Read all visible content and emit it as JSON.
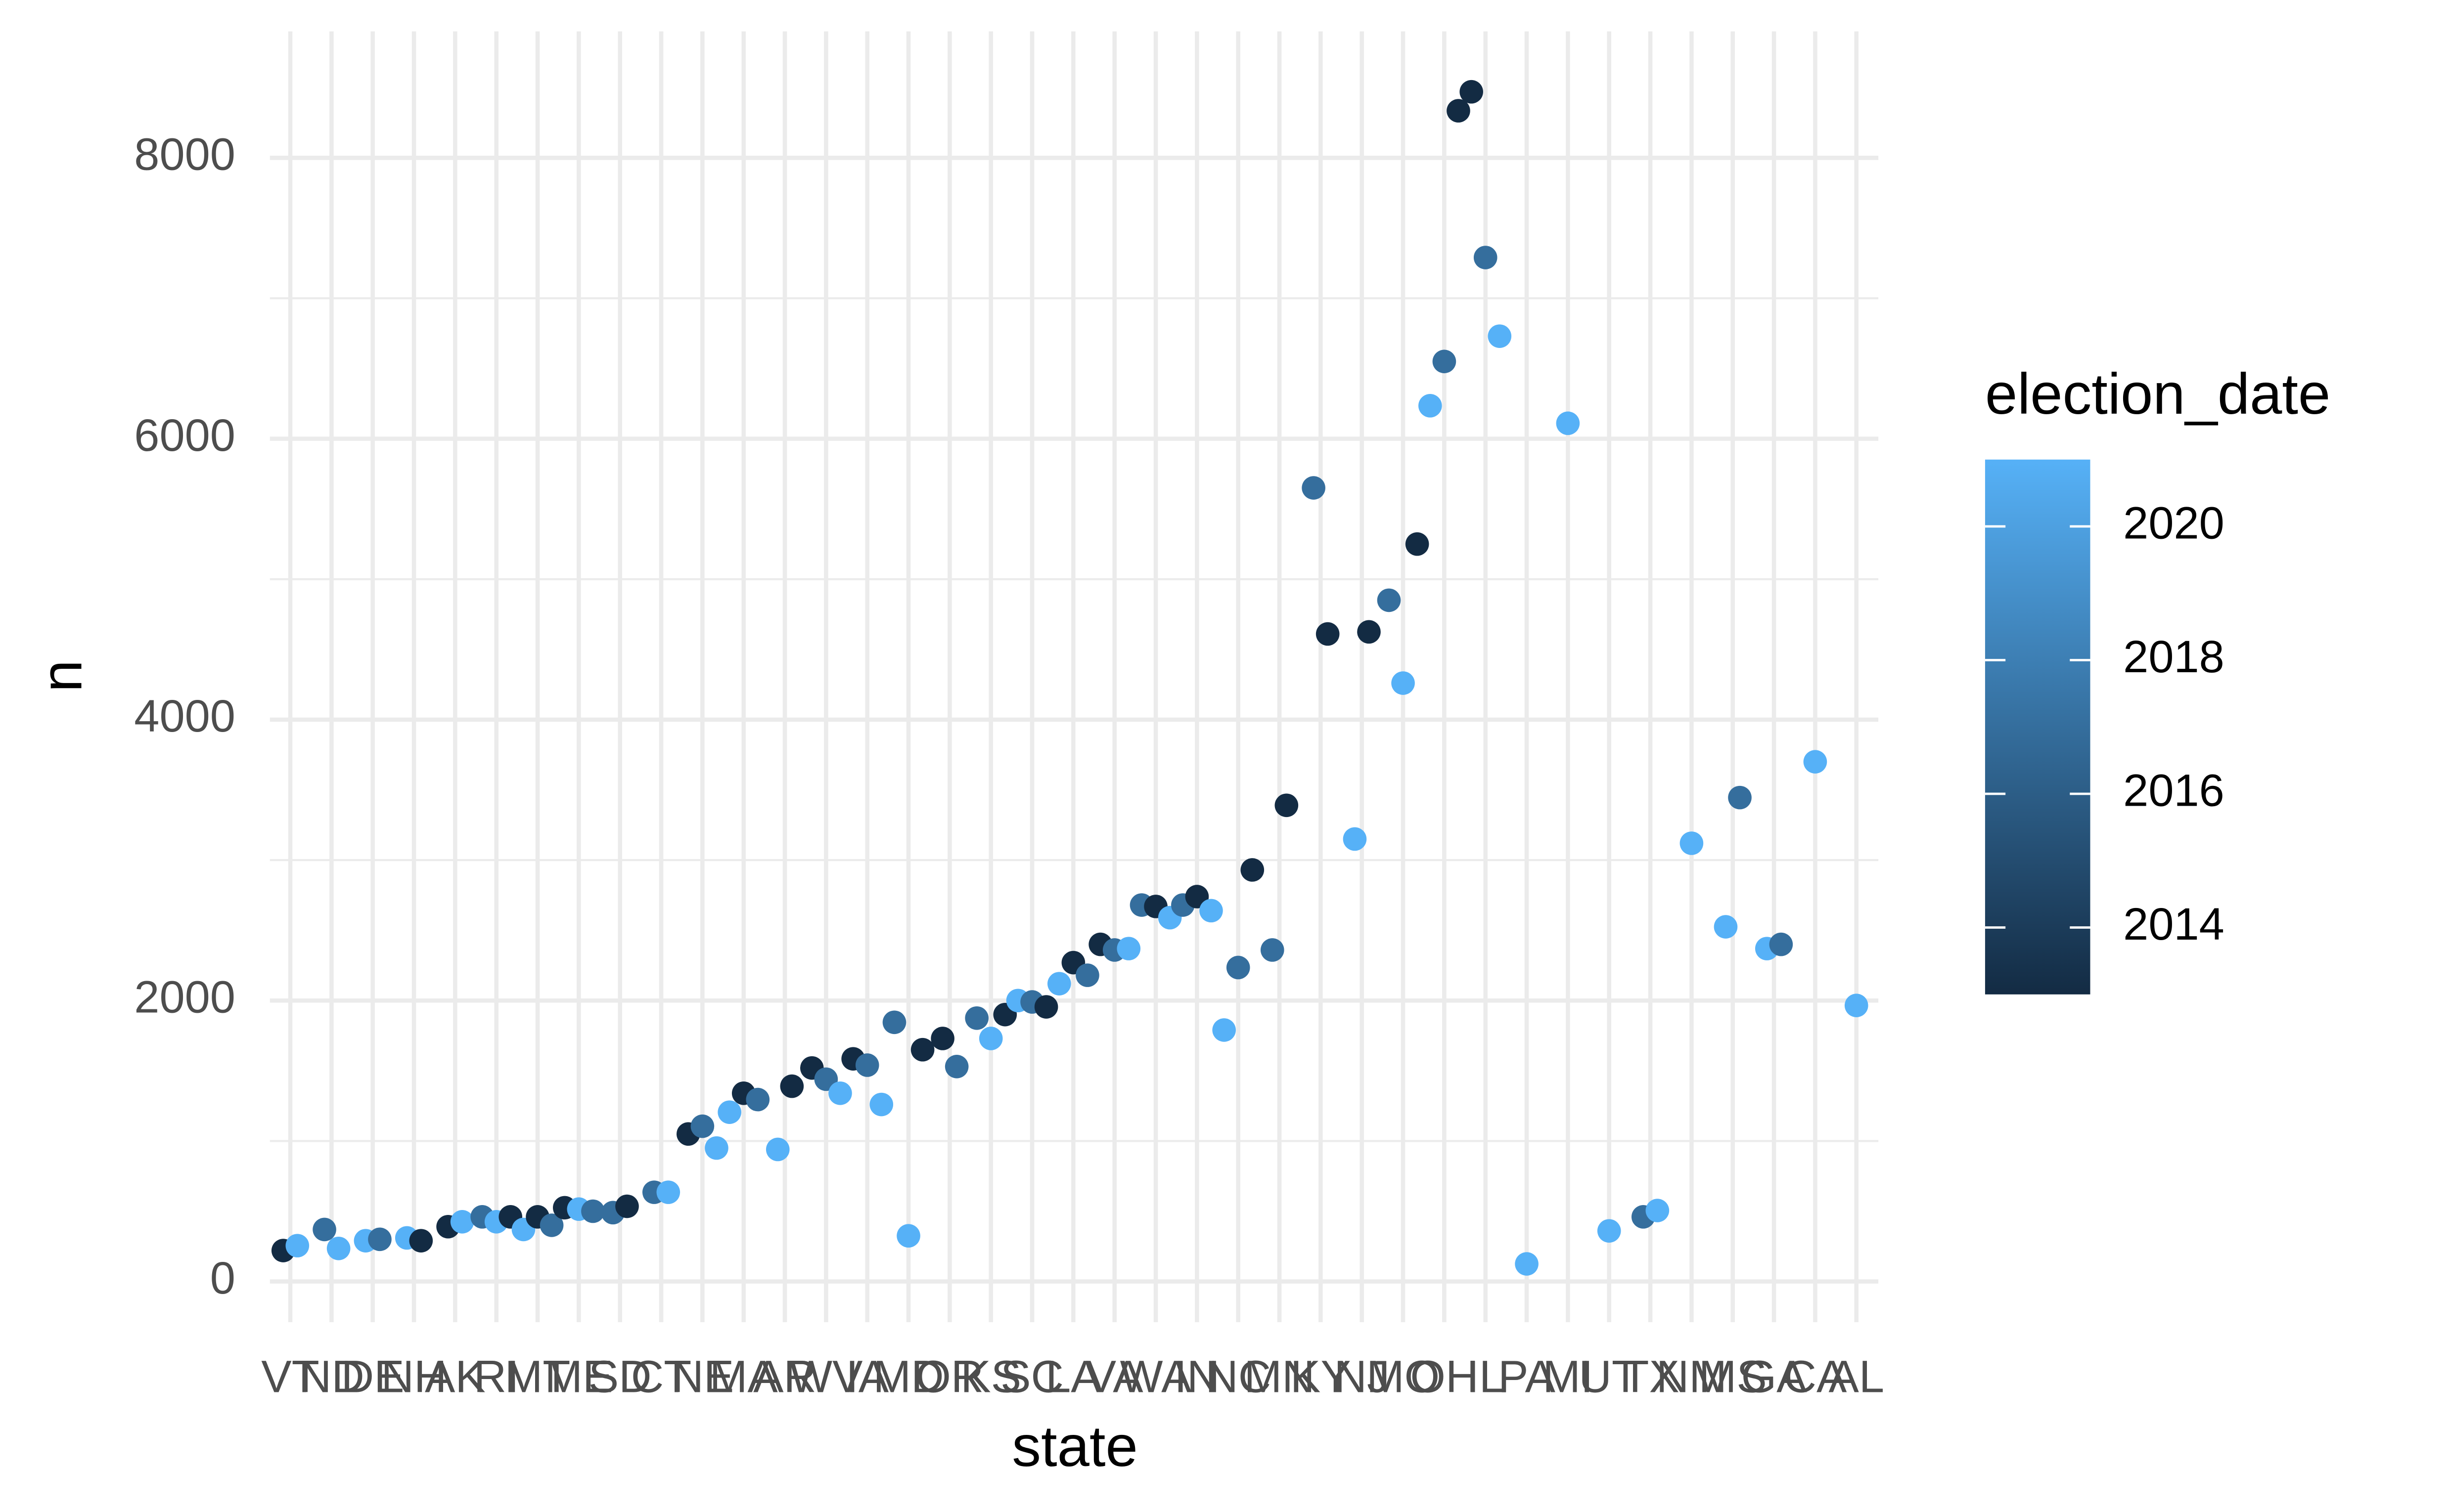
{
  "chart_data": {
    "type": "scatter",
    "x_label": "state",
    "y_label": "n",
    "legend_title": "election_date",
    "categories": [
      "VT",
      "ND",
      "DE",
      "NH",
      "AK",
      "RI",
      "MT",
      "ME",
      "SD",
      "CT",
      "NE",
      "MA",
      "AR",
      "WV",
      "IA",
      "MD",
      "OR",
      "KS",
      "SC",
      "LA",
      "VA",
      "WA",
      "IN",
      "NC",
      "MN",
      "KY",
      "NJ",
      "MO",
      "OH",
      "IL",
      "PA",
      "MI",
      "UT",
      "TX",
      "NM",
      "MS",
      "GA",
      "CA",
      "AL"
    ],
    "x": [
      "VT",
      "VT",
      "ND",
      "ND",
      "DE",
      "DE",
      "NH",
      "NH",
      "AK",
      "AK",
      "RI",
      "RI",
      "RI",
      "MT",
      "MT",
      "MT",
      "ME",
      "ME",
      "ME",
      "SD",
      "SD",
      "CT",
      "CT",
      "NE",
      "NE",
      "NE",
      "MA",
      "MA",
      "MA",
      "AR",
      "AR",
      "WV",
      "WV",
      "WV",
      "IA",
      "IA",
      "IA",
      "MD",
      "MD",
      "MD",
      "OR",
      "OR",
      "KS",
      "KS",
      "KS",
      "SC",
      "SC",
      "SC",
      "LA",
      "LA",
      "LA",
      "VA",
      "VA",
      "VA",
      "WA",
      "WA",
      "WA",
      "IN",
      "IN",
      "IN",
      "NC",
      "NC",
      "NC",
      "MN",
      "MN",
      "KY",
      "KY",
      "NJ",
      "NJ",
      "MO",
      "MO",
      "MO",
      "OH",
      "OH",
      "OH",
      "IL",
      "IL",
      "IL",
      "PA",
      "MI",
      "UT",
      "TX",
      "TX",
      "NM",
      "MS",
      "MS",
      "GA",
      "GA",
      "CA",
      "AL"
    ],
    "values": [
      220,
      255,
      370,
      235,
      290,
      300,
      310,
      290,
      390,
      425,
      460,
      425,
      460,
      370,
      460,
      400,
      525,
      515,
      500,
      490,
      535,
      635,
      635,
      1050,
      1105,
      950,
      1205,
      1340,
      1295,
      940,
      1390,
      1520,
      1440,
      1340,
      1585,
      1540,
      1260,
      1845,
      325,
      1650,
      1730,
      1530,
      1875,
      1730,
      1900,
      2000,
      1990,
      1955,
      2120,
      2270,
      2180,
      2400,
      2360,
      2370,
      2680,
      2670,
      2590,
      2680,
      2740,
      2640,
      1790,
      2235,
      2930,
      2360,
      3390,
      5650,
      4610,
      3150,
      4625,
      4850,
      4260,
      5250,
      6235,
      6550,
      8335,
      8470,
      7290,
      6730,
      125,
      6110,
      360,
      460,
      505,
      3120,
      2525,
      3445,
      2370,
      2400,
      3700,
      1965
    ],
    "color_values": [
      2013,
      2021,
      2017,
      2021,
      2021,
      2017,
      2021,
      2013,
      2013,
      2021,
      2017,
      2021,
      2013,
      2021,
      2013,
      2017,
      2013,
      2021,
      2017,
      2017,
      2013,
      2017,
      2021,
      2013,
      2017,
      2021,
      2021,
      2013,
      2017,
      2021,
      2013,
      2013,
      2017,
      2021,
      2013,
      2017,
      2021,
      2017,
      2021,
      2013,
      2013,
      2017,
      2017,
      2021,
      2013,
      2021,
      2017,
      2013,
      2021,
      2013,
      2017,
      2013,
      2017,
      2021,
      2017,
      2013,
      2021,
      2017,
      2013,
      2021,
      2021,
      2017,
      2013,
      2017,
      2013,
      2017,
      2013,
      2021,
      2013,
      2017,
      2021,
      2013,
      2021,
      2017,
      2013,
      2013,
      2017,
      2021,
      2021,
      2021,
      2021,
      2017,
      2021,
      2021,
      2021,
      2017,
      2021,
      2017,
      2021,
      2021
    ],
    "color_low": "#132b43",
    "color_high": "#56b1f7",
    "color_lim": [
      2013,
      2021
    ],
    "color_ticks": [
      2014,
      2016,
      2018,
      2020
    ],
    "ylim": [
      -290,
      8900
    ],
    "yticks": [
      0,
      2000,
      4000,
      6000,
      8000
    ],
    "y_minor_ticks": [
      1000,
      3000,
      5000,
      7000
    ],
    "grid": true
  }
}
